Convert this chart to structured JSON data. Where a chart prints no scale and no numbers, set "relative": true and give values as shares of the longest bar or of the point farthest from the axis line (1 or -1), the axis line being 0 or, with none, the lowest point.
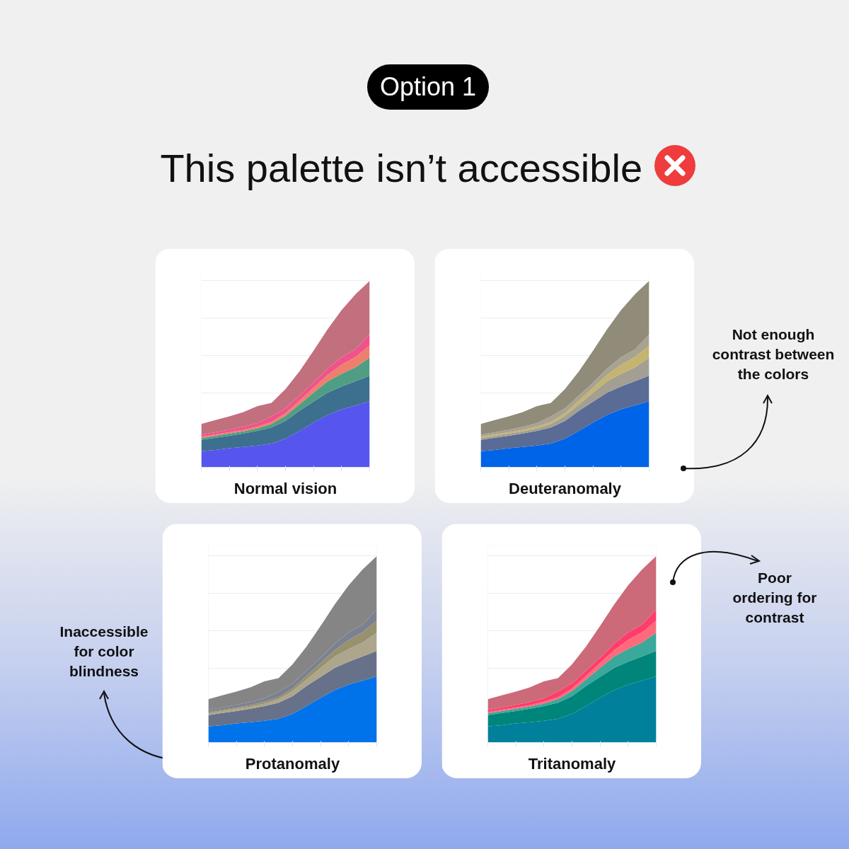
{
  "chart_data": [
    {
      "type": "area",
      "stacked": true,
      "relative": true,
      "grid": "y",
      "title": "Normal vision",
      "annotations": [
        "Option 1",
        "This palette isn’t accessible"
      ],
      "categories": [
        null,
        null,
        null,
        null,
        null,
        null,
        null,
        null,
        null,
        null,
        null,
        null,
        null
      ],
      "series": [
        {
          "color": "#5656ee",
          "values": [
            0.086,
            0.093,
            0.102,
            0.109,
            0.117,
            0.127,
            0.154,
            0.195,
            0.24,
            0.281,
            0.311,
            0.332,
            0.355
          ]
        },
        {
          "color": "#3d6f8f",
          "values": [
            0.061,
            0.065,
            0.067,
            0.072,
            0.078,
            0.086,
            0.095,
            0.109,
            0.112,
            0.119,
            0.123,
            0.13,
            0.136
          ]
        },
        {
          "color": "#4f9e84",
          "values": [
            0.01,
            0.011,
            0.012,
            0.012,
            0.014,
            0.019,
            0.027,
            0.034,
            0.048,
            0.061,
            0.068,
            0.075,
            0.098
          ]
        },
        {
          "color": "#ee7f6c",
          "values": [
            0.007,
            0.007,
            0.007,
            0.008,
            0.01,
            0.011,
            0.014,
            0.02,
            0.027,
            0.034,
            0.048,
            0.055,
            0.065
          ]
        },
        {
          "color": "#f2528a",
          "values": [
            0.011,
            0.012,
            0.014,
            0.016,
            0.018,
            0.03,
            0.027,
            0.027,
            0.027,
            0.034,
            0.041,
            0.041,
            0.059
          ]
        },
        {
          "color": "#c2707e",
          "values": [
            0.057,
            0.065,
            0.071,
            0.079,
            0.091,
            0.072,
            0.102,
            0.13,
            0.171,
            0.211,
            0.252,
            0.296,
            0.287
          ]
        }
      ]
    },
    {
      "type": "area",
      "stacked": true,
      "relative": true,
      "grid": "y",
      "title": "Deuteranomaly",
      "annotations": [
        "Not enough contrast between the colors"
      ],
      "categories": [
        null,
        null,
        null,
        null,
        null,
        null,
        null,
        null,
        null,
        null,
        null,
        null,
        null
      ],
      "series": [
        {
          "color": "#0064e8",
          "values": [
            0.086,
            0.093,
            0.102,
            0.109,
            0.117,
            0.127,
            0.154,
            0.195,
            0.24,
            0.281,
            0.311,
            0.332,
            0.355
          ]
        },
        {
          "color": "#5a6b95",
          "values": [
            0.061,
            0.065,
            0.067,
            0.072,
            0.078,
            0.086,
            0.095,
            0.109,
            0.112,
            0.119,
            0.123,
            0.13,
            0.136
          ]
        },
        {
          "color": "#a39f92",
          "values": [
            0.01,
            0.011,
            0.012,
            0.012,
            0.014,
            0.019,
            0.027,
            0.034,
            0.048,
            0.061,
            0.068,
            0.075,
            0.098
          ]
        },
        {
          "color": "#c4b470",
          "values": [
            0.007,
            0.007,
            0.007,
            0.008,
            0.01,
            0.011,
            0.014,
            0.02,
            0.027,
            0.034,
            0.048,
            0.055,
            0.065
          ]
        },
        {
          "color": "#a8a290",
          "values": [
            0.011,
            0.012,
            0.014,
            0.016,
            0.018,
            0.03,
            0.027,
            0.027,
            0.027,
            0.034,
            0.041,
            0.041,
            0.059
          ]
        },
        {
          "color": "#918b7a",
          "values": [
            0.057,
            0.065,
            0.071,
            0.079,
            0.091,
            0.072,
            0.102,
            0.13,
            0.171,
            0.211,
            0.252,
            0.296,
            0.287
          ]
        }
      ]
    },
    {
      "type": "area",
      "stacked": true,
      "relative": true,
      "grid": "y",
      "title": "Protanomaly",
      "annotations": [
        "Inaccessible for color blindness"
      ],
      "categories": [
        null,
        null,
        null,
        null,
        null,
        null,
        null,
        null,
        null,
        null,
        null,
        null,
        null
      ],
      "series": [
        {
          "color": "#0073ea",
          "values": [
            0.086,
            0.093,
            0.102,
            0.109,
            0.117,
            0.127,
            0.154,
            0.195,
            0.24,
            0.281,
            0.311,
            0.332,
            0.355
          ]
        },
        {
          "color": "#677189",
          "values": [
            0.061,
            0.065,
            0.067,
            0.072,
            0.078,
            0.086,
            0.095,
            0.109,
            0.112,
            0.119,
            0.123,
            0.13,
            0.136
          ]
        },
        {
          "color": "#aea68c",
          "values": [
            0.01,
            0.011,
            0.012,
            0.012,
            0.014,
            0.019,
            0.027,
            0.034,
            0.048,
            0.061,
            0.068,
            0.075,
            0.098
          ]
        },
        {
          "color": "#97916e",
          "values": [
            0.007,
            0.007,
            0.007,
            0.008,
            0.01,
            0.011,
            0.014,
            0.02,
            0.027,
            0.034,
            0.048,
            0.055,
            0.065
          ]
        },
        {
          "color": "#7b8190",
          "values": [
            0.011,
            0.012,
            0.014,
            0.016,
            0.018,
            0.03,
            0.027,
            0.027,
            0.027,
            0.034,
            0.041,
            0.041,
            0.059
          ]
        },
        {
          "color": "#858585",
          "values": [
            0.057,
            0.065,
            0.071,
            0.079,
            0.091,
            0.072,
            0.102,
            0.13,
            0.171,
            0.211,
            0.252,
            0.296,
            0.287
          ]
        }
      ]
    },
    {
      "type": "area",
      "stacked": true,
      "relative": true,
      "grid": "y",
      "title": "Tritanomaly",
      "annotations": [
        "Poor ordering for contrast"
      ],
      "categories": [
        null,
        null,
        null,
        null,
        null,
        null,
        null,
        null,
        null,
        null,
        null,
        null,
        null
      ],
      "series": [
        {
          "color": "#00809a",
          "values": [
            0.086,
            0.093,
            0.102,
            0.109,
            0.117,
            0.127,
            0.154,
            0.195,
            0.24,
            0.281,
            0.311,
            0.332,
            0.355
          ]
        },
        {
          "color": "#00857a",
          "values": [
            0.061,
            0.065,
            0.067,
            0.072,
            0.078,
            0.086,
            0.095,
            0.109,
            0.112,
            0.119,
            0.123,
            0.13,
            0.136
          ]
        },
        {
          "color": "#3aa89a",
          "values": [
            0.01,
            0.011,
            0.012,
            0.012,
            0.014,
            0.019,
            0.027,
            0.034,
            0.048,
            0.061,
            0.068,
            0.075,
            0.098
          ]
        },
        {
          "color": "#ff6a7a",
          "values": [
            0.007,
            0.007,
            0.007,
            0.008,
            0.01,
            0.011,
            0.014,
            0.02,
            0.027,
            0.034,
            0.048,
            0.055,
            0.065
          ]
        },
        {
          "color": "#ff3d6a",
          "values": [
            0.011,
            0.012,
            0.014,
            0.016,
            0.018,
            0.03,
            0.027,
            0.027,
            0.027,
            0.034,
            0.041,
            0.041,
            0.059
          ]
        },
        {
          "color": "#cc6a7a",
          "values": [
            0.057,
            0.065,
            0.071,
            0.079,
            0.091,
            0.072,
            0.102,
            0.13,
            0.171,
            0.211,
            0.252,
            0.296,
            0.287
          ]
        }
      ]
    }
  ]
}
